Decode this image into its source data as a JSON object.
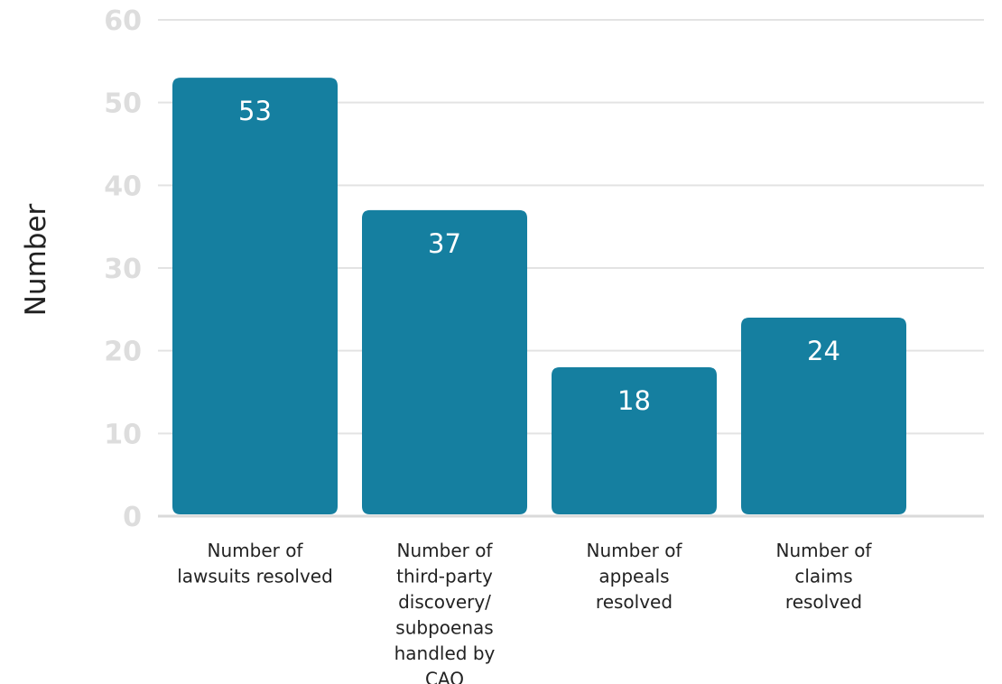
{
  "chart_data": {
    "type": "bar",
    "categories": [
      [
        "Number of",
        "lawsuits resolved"
      ],
      [
        "Number of",
        "third-party",
        "discovery/",
        "subpoenas",
        "handled by",
        "CAO"
      ],
      [
        "Number of",
        "appeals",
        "resolved"
      ],
      [
        "Number of",
        "claims",
        "resolved"
      ]
    ],
    "values": [
      53,
      37,
      18,
      24
    ],
    "data_labels": [
      "53",
      "37",
      "18",
      "24"
    ],
    "ylabel": "Number",
    "xlabel": "",
    "ylim": [
      0,
      60
    ],
    "yticks": [
      "0",
      "10",
      "20",
      "30",
      "40",
      "50",
      "60"
    ],
    "grid": true,
    "legend": "none",
    "colors": {
      "bar": "#157fa0",
      "grid": "#e3e3e3",
      "baseline": "#dadada",
      "y_tick_text": "#dddddd",
      "axis_title": "#222222",
      "x_tick_text": "#222222",
      "bar_label": "#ffffff"
    }
  }
}
